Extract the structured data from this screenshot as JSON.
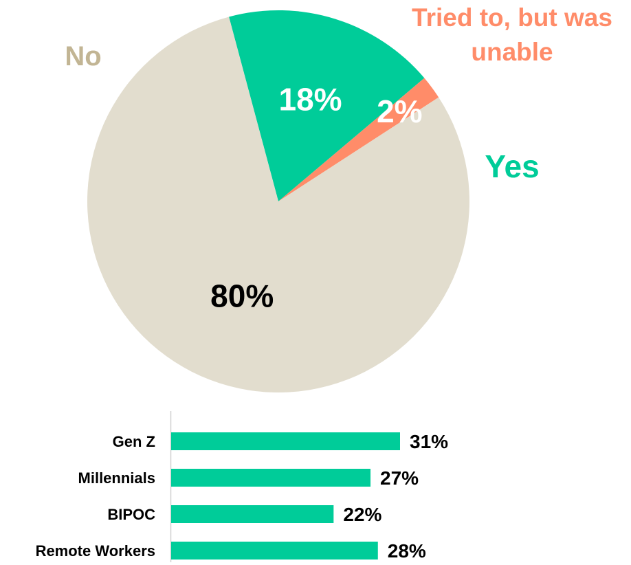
{
  "chart_data": [
    {
      "type": "pie",
      "slices": [
        {
          "label": "Yes",
          "value": 18,
          "value_label": "18%",
          "color": "#00CC99",
          "value_label_color": "#ffffff"
        },
        {
          "label": "Tried to, but was unable",
          "label_lines": [
            "Tried to, but was",
            "unable"
          ],
          "value": 2,
          "value_label": "2%",
          "color": "#FF8C69",
          "value_label_color": "#ffffff"
        },
        {
          "label": "No",
          "value": 80,
          "value_label": "80%",
          "color": "#E2DDCE",
          "value_label_color": "#000000"
        }
      ],
      "category_label_colors": {
        "Yes": "#00CC99",
        "Tried to, but was unable": "#FF8C69",
        "No": "#C2B594"
      }
    },
    {
      "type": "bar",
      "orientation": "horizontal",
      "categories": [
        "Gen Z",
        "Millennials",
        "BIPOC",
        "Remote Workers"
      ],
      "values": [
        31,
        27,
        22,
        28
      ],
      "value_labels": [
        "31%",
        "27%",
        "22%",
        "28%"
      ],
      "color": "#00CC99"
    }
  ]
}
